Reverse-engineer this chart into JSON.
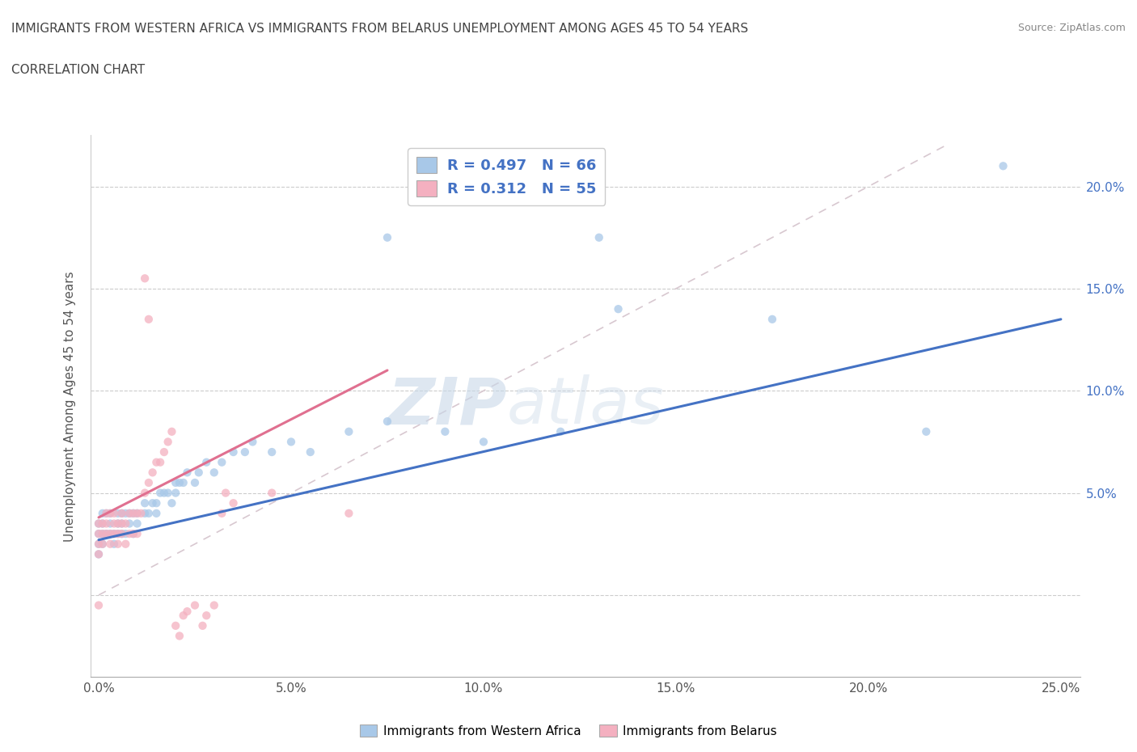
{
  "title_line1": "IMMIGRANTS FROM WESTERN AFRICA VS IMMIGRANTS FROM BELARUS UNEMPLOYMENT AMONG AGES 45 TO 54 YEARS",
  "title_line2": "CORRELATION CHART",
  "source": "Source: ZipAtlas.com",
  "ylabel": "Unemployment Among Ages 45 to 54 years",
  "xlim": [
    -0.002,
    0.255
  ],
  "ylim": [
    -0.04,
    0.225
  ],
  "xticks": [
    0.0,
    0.05,
    0.1,
    0.15,
    0.2,
    0.25
  ],
  "yticks": [
    0.0,
    0.05,
    0.1,
    0.15,
    0.2
  ],
  "xtick_labels": [
    "0.0%",
    "5.0%",
    "10.0%",
    "15.0%",
    "20.0%",
    "25.0%"
  ],
  "ytick_labels_right": [
    "",
    "5.0%",
    "10.0%",
    "15.0%",
    "20.0%"
  ],
  "r_blue": 0.497,
  "n_blue": 66,
  "r_pink": 0.312,
  "n_pink": 55,
  "color_blue": "#a8c8e8",
  "color_pink": "#f4b0c0",
  "line_blue": "#4472C4",
  "line_pink": "#e07090",
  "ref_line_color": "#d8c8d0",
  "legend_label_blue": "Immigrants from Western Africa",
  "legend_label_pink": "Immigrants from Belarus",
  "watermark_part1": "ZIP",
  "watermark_part2": "atlas",
  "blue_trend_x": [
    0.0,
    0.25
  ],
  "blue_trend_y": [
    0.027,
    0.135
  ],
  "pink_trend_x": [
    0.0,
    0.075
  ],
  "pink_trend_y": [
    0.038,
    0.11
  ],
  "blue_x": [
    0.0,
    0.0,
    0.0,
    0.0,
    0.001,
    0.001,
    0.001,
    0.001,
    0.002,
    0.002,
    0.003,
    0.003,
    0.003,
    0.004,
    0.004,
    0.005,
    0.005,
    0.005,
    0.006,
    0.006,
    0.006,
    0.007,
    0.007,
    0.008,
    0.008,
    0.009,
    0.009,
    0.01,
    0.01,
    0.012,
    0.012,
    0.013,
    0.014,
    0.015,
    0.015,
    0.016,
    0.017,
    0.018,
    0.019,
    0.02,
    0.02,
    0.021,
    0.022,
    0.023,
    0.025,
    0.026,
    0.028,
    0.03,
    0.032,
    0.035,
    0.038,
    0.04,
    0.045,
    0.05,
    0.055,
    0.065,
    0.075,
    0.09,
    0.1,
    0.12,
    0.13,
    0.135,
    0.175,
    0.215,
    0.235,
    0.075
  ],
  "blue_y": [
    0.03,
    0.035,
    0.025,
    0.02,
    0.03,
    0.035,
    0.04,
    0.025,
    0.03,
    0.04,
    0.03,
    0.035,
    0.04,
    0.025,
    0.03,
    0.03,
    0.035,
    0.04,
    0.03,
    0.035,
    0.04,
    0.03,
    0.04,
    0.035,
    0.04,
    0.03,
    0.04,
    0.035,
    0.04,
    0.04,
    0.045,
    0.04,
    0.045,
    0.04,
    0.045,
    0.05,
    0.05,
    0.05,
    0.045,
    0.05,
    0.055,
    0.055,
    0.055,
    0.06,
    0.055,
    0.06,
    0.065,
    0.06,
    0.065,
    0.07,
    0.07,
    0.075,
    0.07,
    0.075,
    0.07,
    0.08,
    0.085,
    0.08,
    0.075,
    0.08,
    0.175,
    0.14,
    0.135,
    0.08,
    0.21,
    0.175
  ],
  "pink_x": [
    0.0,
    0.0,
    0.0,
    0.0,
    0.0,
    0.001,
    0.001,
    0.001,
    0.002,
    0.002,
    0.002,
    0.003,
    0.003,
    0.003,
    0.004,
    0.004,
    0.004,
    0.005,
    0.005,
    0.005,
    0.006,
    0.006,
    0.006,
    0.007,
    0.007,
    0.008,
    0.008,
    0.009,
    0.009,
    0.01,
    0.01,
    0.011,
    0.012,
    0.013,
    0.014,
    0.015,
    0.016,
    0.017,
    0.018,
    0.019,
    0.02,
    0.021,
    0.022,
    0.023,
    0.025,
    0.027,
    0.028,
    0.03,
    0.032,
    0.033,
    0.012,
    0.013,
    0.035,
    0.045,
    0.065
  ],
  "pink_y": [
    0.03,
    0.035,
    0.025,
    0.02,
    -0.005,
    0.03,
    0.035,
    0.025,
    0.03,
    0.035,
    0.04,
    0.025,
    0.03,
    0.04,
    0.03,
    0.035,
    0.04,
    0.025,
    0.03,
    0.035,
    0.03,
    0.035,
    0.04,
    0.025,
    0.035,
    0.03,
    0.04,
    0.03,
    0.04,
    0.03,
    0.04,
    0.04,
    0.05,
    0.055,
    0.06,
    0.065,
    0.065,
    0.07,
    0.075,
    0.08,
    -0.015,
    -0.02,
    -0.01,
    -0.008,
    -0.005,
    -0.015,
    -0.01,
    -0.005,
    0.04,
    0.05,
    0.155,
    0.135,
    0.045,
    0.05,
    0.04
  ]
}
